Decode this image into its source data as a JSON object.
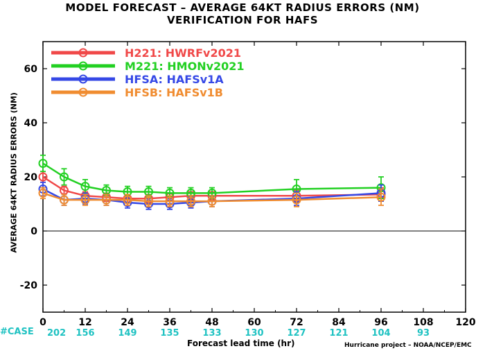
{
  "header": {
    "title_line1": "MODEL FORECAST – AVERAGE 64KT RADIUS ERRORS (NM)",
    "title_line2": "VERIFICATION FOR HAFS"
  },
  "footer": {
    "credit": "Hurricane project – NOAA/NCEP/EMC",
    "case_label": "#CASE",
    "case_color": "#1fc2c2"
  },
  "chart_data": {
    "type": "line",
    "xlabel": "Forecast lead time (hr)",
    "ylabel": "AVERAGE 64KT RADIUS ERRORS (NM)",
    "xlim": [
      0,
      120
    ],
    "ylim": [
      -30,
      70
    ],
    "xticks": [
      0,
      12,
      24,
      36,
      48,
      60,
      72,
      84,
      96,
      108,
      120
    ],
    "yticks": [
      -20,
      0,
      20,
      40,
      60
    ],
    "zero_line": true,
    "grid": false,
    "legend_position": "top-left",
    "case_counts": [
      {
        "x": 0,
        "count": "202"
      },
      {
        "x": 12,
        "count": "156"
      },
      {
        "x": 24,
        "count": "149"
      },
      {
        "x": 36,
        "count": "135"
      },
      {
        "x": 48,
        "count": "133"
      },
      {
        "x": 60,
        "count": "130"
      },
      {
        "x": 72,
        "count": "127"
      },
      {
        "x": 84,
        "count": "121"
      },
      {
        "x": 96,
        "count": "104"
      },
      {
        "x": 108,
        "count": "93"
      }
    ],
    "series": [
      {
        "name": "H221:  HWRFv2021",
        "color": "#f04848",
        "x": [
          0,
          6,
          12,
          18,
          24,
          30,
          36,
          42,
          48,
          72,
          96
        ],
        "y": [
          20,
          15,
          13,
          12.5,
          12,
          12,
          12.5,
          13,
          13,
          13,
          13.5
        ],
        "err": [
          2,
          1.5,
          1.5,
          1.5,
          1.5,
          1.5,
          1.5,
          1.5,
          1.5,
          2,
          2.5
        ]
      },
      {
        "name": "M221:  HMONv2021",
        "color": "#22d022",
        "x": [
          0,
          6,
          12,
          18,
          24,
          30,
          36,
          42,
          48,
          72,
          96
        ],
        "y": [
          25,
          20,
          16.5,
          15,
          14.5,
          14.5,
          14,
          14,
          14,
          15.5,
          16
        ],
        "err": [
          3,
          3,
          2.5,
          2,
          2,
          2,
          2,
          2,
          2,
          3.5,
          4
        ]
      },
      {
        "name": "HFSA:  HAFSv1A",
        "color": "#3548e6",
        "x": [
          0,
          6,
          12,
          18,
          24,
          30,
          36,
          42,
          48,
          72,
          96
        ],
        "y": [
          15.5,
          11.5,
          12,
          11.5,
          10.5,
          10,
          10,
          10.5,
          11,
          12,
          14
        ],
        "err": [
          2.5,
          2,
          2,
          2,
          2,
          2,
          2,
          2,
          2,
          2.5,
          3
        ]
      },
      {
        "name": "HFSB:  HAFSv1B",
        "color": "#f08c30",
        "x": [
          0,
          6,
          12,
          18,
          24,
          30,
          36,
          42,
          48,
          72,
          96
        ],
        "y": [
          14,
          11.5,
          11.5,
          11.5,
          11.5,
          11,
          11,
          11,
          11,
          11.5,
          12.5
        ],
        "err": [
          2,
          2,
          2,
          2,
          2,
          2,
          2,
          2,
          2,
          2.5,
          3
        ]
      }
    ]
  }
}
